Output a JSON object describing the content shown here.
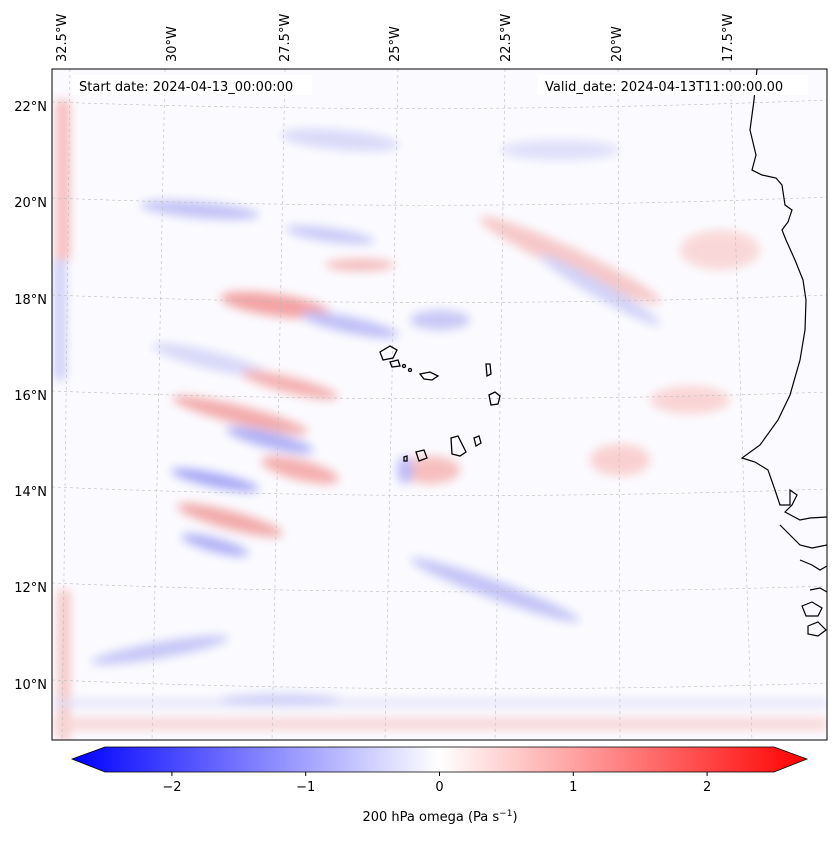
{
  "map": {
    "start_date": "Start date: 2024-04-13_00:00:00",
    "valid_date": "Valid_date: 2024-04-13T11:00:00.00",
    "lon_labels": [
      "32.5°W",
      "30°W",
      "27.5°W",
      "25°W",
      "22.5°W",
      "20°W",
      "17.5°W"
    ],
    "lat_labels": [
      "22°N",
      "20°N",
      "18°N",
      "16°N",
      "14°N",
      "12°N",
      "10°N"
    ],
    "field": "200 hPa omega",
    "colors": {
      "negative": "#0000ff",
      "positive": "#ff0000",
      "neutral": "#ffffff",
      "coast": "#000000"
    }
  },
  "colorbar": {
    "ticks": [
      "−2",
      "−1",
      "0",
      "1",
      "2"
    ],
    "tick_values": [
      -2,
      -1,
      0,
      1,
      2
    ],
    "range": [
      -2.5,
      2.5
    ],
    "label_main": "200 hPa omega (Pa s",
    "label_sup": "−1",
    "label_end": ")"
  }
}
